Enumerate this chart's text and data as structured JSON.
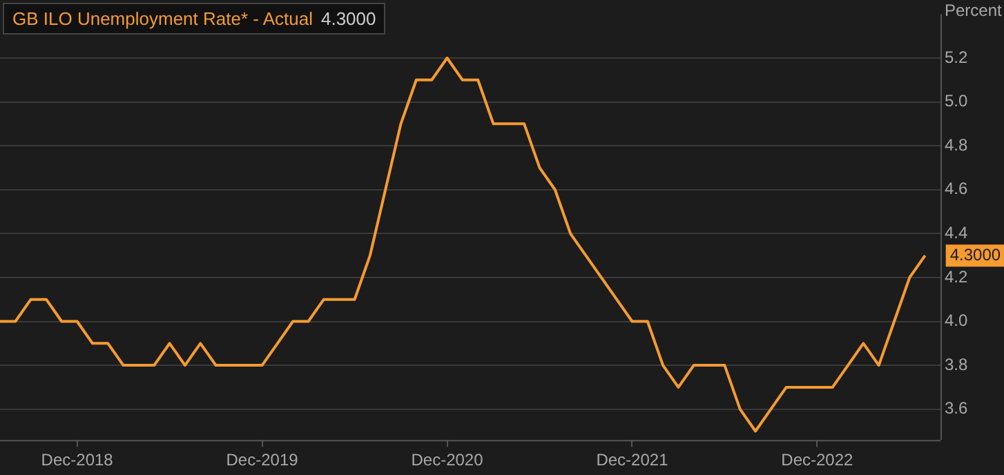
{
  "chart_data": {
    "type": "line",
    "title": "GB ILO Unemployment Rate* - Actual",
    "ylabel": "Percent",
    "x": [
      "2018-07",
      "2018-08",
      "2018-09",
      "2018-10",
      "2018-11",
      "2018-12",
      "2019-01",
      "2019-02",
      "2019-03",
      "2019-04",
      "2019-05",
      "2019-06",
      "2019-07",
      "2019-08",
      "2019-09",
      "2019-10",
      "2019-11",
      "2019-12",
      "2020-01",
      "2020-02",
      "2020-03",
      "2020-04",
      "2020-05",
      "2020-06",
      "2020-07",
      "2020-08",
      "2020-09",
      "2020-10",
      "2020-11",
      "2020-12",
      "2021-01",
      "2021-02",
      "2021-03",
      "2021-04",
      "2021-05",
      "2021-06",
      "2021-07",
      "2021-08",
      "2021-09",
      "2021-10",
      "2021-11",
      "2021-12",
      "2022-01",
      "2022-02",
      "2022-03",
      "2022-04",
      "2022-05",
      "2022-06",
      "2022-07",
      "2022-08",
      "2022-09",
      "2022-10",
      "2022-11",
      "2022-12",
      "2023-01",
      "2023-02",
      "2023-03",
      "2023-04",
      "2023-05",
      "2023-06",
      "2023-07"
    ],
    "series": [
      {
        "color": "#f59b30",
        "values": [
          4.0,
          4.0,
          4.1,
          4.1,
          4.0,
          4.0,
          3.9,
          3.9,
          3.8,
          3.8,
          3.8,
          3.9,
          3.8,
          3.9,
          3.8,
          3.8,
          3.8,
          3.8,
          3.9,
          4.0,
          4.0,
          4.1,
          4.1,
          4.1,
          4.3,
          4.6,
          4.9,
          5.1,
          5.1,
          5.2,
          5.1,
          5.1,
          4.9,
          4.9,
          4.9,
          4.7,
          4.6,
          4.4,
          4.3,
          4.2,
          4.1,
          4.0,
          4.0,
          3.8,
          3.7,
          3.8,
          3.8,
          3.8,
          3.6,
          3.5,
          3.6,
          3.7,
          3.7,
          3.7,
          3.7,
          3.8,
          3.9,
          3.8,
          4.0,
          4.2,
          4.3
        ]
      }
    ],
    "xlim": [
      "2018-07",
      "2023-08"
    ],
    "xticks": [
      {
        "value": "2018-12",
        "label": "Dec-2018"
      },
      {
        "value": "2019-12",
        "label": "Dec-2019"
      },
      {
        "value": "2020-12",
        "label": "Dec-2020"
      },
      {
        "value": "2021-12",
        "label": "Dec-2021"
      },
      {
        "value": "2022-12",
        "label": "Dec-2022"
      }
    ],
    "ylim": [
      3.46,
      5.4
    ],
    "yticks": [
      {
        "value": 3.6,
        "label": "3.6"
      },
      {
        "value": 3.8,
        "label": "3.8"
      },
      {
        "value": 4.0,
        "label": "4.0"
      },
      {
        "value": 4.2,
        "label": "4.2"
      },
      {
        "value": 4.4,
        "label": "4.4"
      },
      {
        "value": 4.6,
        "label": "4.6"
      },
      {
        "value": 4.8,
        "label": "4.8"
      },
      {
        "value": 5.0,
        "label": "5.0"
      },
      {
        "value": 5.2,
        "label": "5.2"
      }
    ],
    "annotations": [
      "4.3000",
      {
        "text": "4.3000",
        "x": "2023-07",
        "y": 4.3
      }
    ],
    "grid": "y",
    "legend": false,
    "marker": "none",
    "line_style": "solid"
  }
}
